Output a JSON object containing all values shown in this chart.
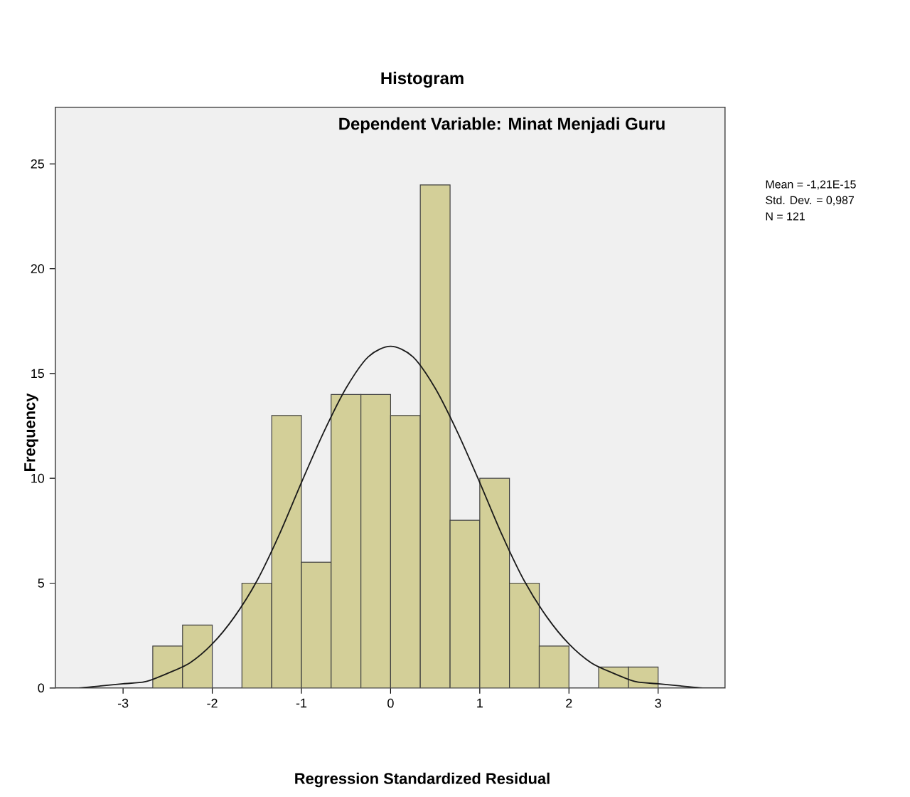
{
  "chart_data": {
    "type": "histogram",
    "title": "Histogram",
    "subtitle": "Dependent Variable: Minat Menjadi Guru",
    "xlabel": "Regression Standardized Residual",
    "ylabel": "Frequency",
    "bins": [
      -2.667,
      -2.333,
      -2,
      -1.667,
      -1.333,
      -1,
      -0.667,
      -0.333,
      0,
      0.333,
      0.667,
      1,
      1.333,
      1.667,
      2,
      2.333,
      2.667,
      3
    ],
    "values": [
      2,
      3,
      0,
      5,
      13,
      6,
      14,
      14,
      13,
      24,
      8,
      10,
      5,
      2,
      0,
      1,
      1
    ],
    "color": "#d3cf98",
    "series": [
      {
        "type": "line",
        "color": "#1a1a1a",
        "x": [
          -3.75,
          -3.5,
          -3.25,
          -3,
          -2.75,
          -2.5,
          -2.25,
          -2,
          -1.75,
          -1.5,
          -1.25,
          -1,
          -0.75,
          -0.5,
          -0.25,
          0,
          0.25,
          0.5,
          0.75,
          1,
          1.25,
          1.5,
          1.75,
          2,
          2.25,
          2.5,
          2.75,
          3,
          3.25,
          3.5,
          3.75
        ],
        "values": [
          0,
          0,
          0.1,
          0.2,
          0.3,
          0.7,
          1.2,
          2.1,
          3.4,
          5.1,
          7.3,
          9.8,
          12.2,
          14.3,
          15.8,
          16.3,
          15.8,
          14.3,
          12.2,
          9.8,
          7.3,
          5.1,
          3.4,
          2.1,
          1.2,
          0.7,
          0.3,
          0.2,
          0.1,
          0,
          0
        ]
      }
    ],
    "xlim": [
      -3.76,
      3.75
    ],
    "xticks": [
      -3,
      -2,
      -1,
      0,
      1,
      2,
      3
    ],
    "ylim": [
      0,
      27.7
    ],
    "yticks": [
      0,
      5,
      10,
      15,
      20,
      25
    ],
    "grid": false,
    "marker": "none",
    "line_style": "solid",
    "annotations": [
      "Mean = -1,21E-15",
      "Std. Dev. = 0,987",
      "N = 121"
    ]
  }
}
